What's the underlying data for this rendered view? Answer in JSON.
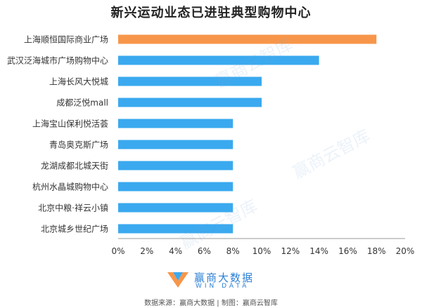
{
  "chart_data": {
    "type": "bar",
    "orientation": "horizontal",
    "title": "新兴运动业态已进驻典型购物中心",
    "categories": [
      "上海顺恒国际商业广场",
      "武汉泛海城市广场购物中心",
      "上海长风大悦城",
      "成都泛悦mall",
      "上海宝山保利悦活荟",
      "青岛奥克斯广场",
      "龙湖成都北城天街",
      "杭州水晶城购物中心",
      "北京中粮·祥云小镇",
      "北京城乡世纪广场"
    ],
    "values": [
      18,
      14,
      10,
      10,
      8,
      8,
      8,
      8,
      8,
      8
    ],
    "xlim": [
      0,
      20
    ],
    "ticks": [
      "0%",
      "2%",
      "4%",
      "6%",
      "8%",
      "10%",
      "12%",
      "14%",
      "16%",
      "18%",
      "20%"
    ],
    "tick_values": [
      0,
      2,
      4,
      6,
      8,
      10,
      12,
      14,
      16,
      18,
      20
    ],
    "grid": false,
    "highlight_index": 0,
    "colors": {
      "highlight": "#f7964a",
      "default": "#3aa9ef",
      "axis": "#999999"
    }
  },
  "logo": {
    "brand": "赢商大数据",
    "brand_en": "WIN DATA"
  },
  "watermark": "赢商云智库",
  "source": "数据来源：赢商大数据 | 制图：赢商云智库"
}
